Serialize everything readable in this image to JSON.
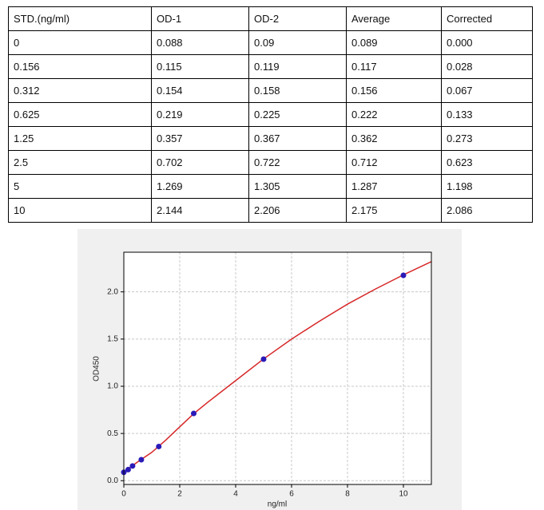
{
  "table": {
    "header": [
      "STD.(ng/ml)",
      "OD-1",
      "OD-2",
      "Average",
      "Corrected"
    ],
    "rows": [
      [
        "0",
        "0.088",
        "0.09",
        "0.089",
        "0.000"
      ],
      [
        "0.156",
        "0.115",
        "0.119",
        "0.117",
        "0.028"
      ],
      [
        "0.312",
        "0.154",
        "0.158",
        "0.156",
        "0.067"
      ],
      [
        "0.625",
        "0.219",
        "0.225",
        "0.222",
        "0.133"
      ],
      [
        "1.25",
        "0.357",
        "0.367",
        "0.362",
        "0.273"
      ],
      [
        "2.5",
        "0.702",
        "0.722",
        "0.712",
        "0.623"
      ],
      [
        "5",
        "1.269",
        "1.305",
        "1.287",
        "1.198"
      ],
      [
        "10",
        "2.144",
        "2.206",
        "2.175",
        "2.086"
      ]
    ]
  },
  "chart_data": {
    "type": "scatter",
    "x_label": "ng/ml",
    "y_label": "OD450",
    "xlim": [
      0,
      11
    ],
    "ylim": [
      -0.04,
      2.42
    ],
    "xticks": [
      0,
      2,
      4,
      6,
      8,
      10
    ],
    "yticks": [
      {
        "value": 0,
        "label": "0.0"
      },
      0.5,
      {
        "value": 1,
        "label": "1.0"
      },
      1.5,
      {
        "value": 2,
        "label": "2.0"
      }
    ],
    "grid": true,
    "series": [
      {
        "type": "scatter",
        "color": "#2a1bb8",
        "x": [
          0,
          0.156,
          0.312,
          0.625,
          1.25,
          2.5,
          5,
          10
        ],
        "values": [
          0.089,
          0.117,
          0.156,
          0.222,
          0.362,
          0.712,
          1.287,
          2.175
        ]
      },
      {
        "type": "line",
        "color": "#d62728",
        "x": [
          0,
          0.5,
          1,
          1.5,
          2,
          2.5,
          3,
          4,
          5,
          6,
          7,
          8,
          9,
          10,
          11
        ],
        "values": [
          0.09,
          0.2,
          0.3,
          0.43,
          0.57,
          0.71,
          0.83,
          1.06,
          1.29,
          1.5,
          1.69,
          1.87,
          2.03,
          2.18,
          2.32
        ]
      }
    ]
  }
}
